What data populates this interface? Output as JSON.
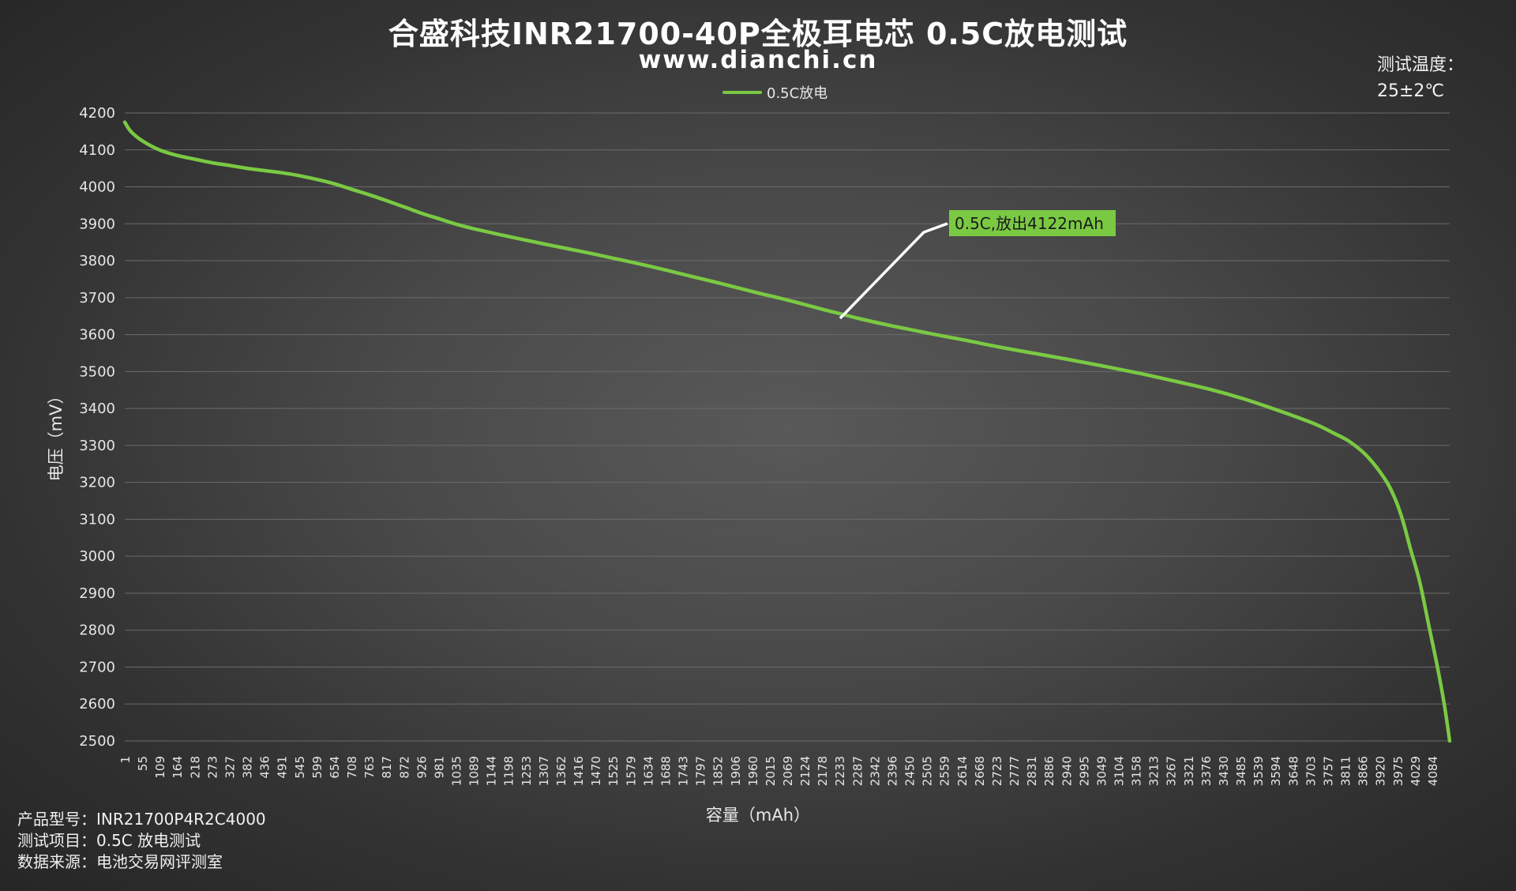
{
  "chart_title": "合盛科技INR21700-40P全极耳电芯 0.5C放电测试",
  "chart_subtitle": "www.dianchi.cn",
  "test_temperature": {
    "label": "测试温度：",
    "value": "25±2℃"
  },
  "footer": [
    {
      "label": "产品型号：",
      "value": "INR21700P4R2C4000"
    },
    {
      "label": "测试项目：",
      "value": "0.5C 放电测试"
    },
    {
      "label": "数据来源：",
      "value": "电池交易网评测室"
    }
  ],
  "callout": "0.5C,放出4122mAh",
  "colors": {
    "series": "#7ac943",
    "callout_bg": "#7ac943",
    "gridline": "#6b6b6b",
    "leader_line": "#ffffff"
  },
  "chart_data": {
    "type": "line",
    "title": "合盛科技INR21700-40P全极耳电芯 0.5C放电测试",
    "xlabel": "容量（mAh）",
    "ylabel": "电压（mV）",
    "ylim": [
      2500,
      4200
    ],
    "yticks": [
      4200,
      4100,
      4000,
      3900,
      3800,
      3700,
      3600,
      3500,
      3400,
      3300,
      3200,
      3100,
      3000,
      2900,
      2800,
      2700,
      2600,
      2500
    ],
    "xlim": [
      1,
      4122
    ],
    "xticks": [
      "1",
      "55",
      "109",
      "164",
      "218",
      "273",
      "327",
      "382",
      "436",
      "491",
      "545",
      "599",
      "654",
      "708",
      "763",
      "817",
      "872",
      "926",
      "981",
      "1035",
      "1089",
      "1144",
      "1198",
      "1253",
      "1307",
      "1362",
      "1416",
      "1470",
      "1525",
      "1579",
      "1634",
      "1688",
      "1743",
      "1797",
      "1852",
      "1906",
      "1960",
      "2015",
      "2069",
      "2124",
      "2178",
      "2233",
      "2287",
      "2342",
      "2396",
      "2450",
      "2505",
      "2559",
      "2614",
      "2668",
      "2723",
      "2777",
      "2831",
      "2886",
      "2940",
      "2995",
      "3049",
      "3104",
      "3158",
      "3213",
      "3267",
      "3321",
      "3376",
      "3430",
      "3485",
      "3539",
      "3594",
      "3648",
      "3703",
      "3757",
      "3811",
      "3866",
      "3920",
      "3975",
      "4029",
      "4084"
    ],
    "grid": true,
    "legend_position": "top-center",
    "series": [
      {
        "name": "0.5C放电",
        "x": [
          1,
          20,
          55,
          109,
          164,
          218,
          273,
          327,
          382,
          436,
          491,
          545,
          599,
          654,
          708,
          763,
          817,
          872,
          926,
          981,
          1035,
          1089,
          1198,
          1307,
          1416,
          1525,
          1634,
          1743,
          1852,
          1960,
          2069,
          2178,
          2233,
          2287,
          2396,
          2505,
          2614,
          2723,
          2831,
          2940,
          3049,
          3158,
          3267,
          3376,
          3485,
          3594,
          3703,
          3757,
          3811,
          3866,
          3920,
          3950,
          3975,
          4000,
          4029,
          4060,
          4084,
          4105,
          4122
        ],
        "y": [
          4175,
          4150,
          4125,
          4100,
          4085,
          4075,
          4065,
          4058,
          4050,
          4044,
          4038,
          4030,
          4020,
          4008,
          3993,
          3978,
          3962,
          3945,
          3928,
          3913,
          3898,
          3886,
          3865,
          3845,
          3826,
          3806,
          3785,
          3762,
          3739,
          3715,
          3692,
          3667,
          3655,
          3643,
          3622,
          3603,
          3585,
          3566,
          3549,
          3532,
          3514,
          3495,
          3474,
          3452,
          3425,
          3393,
          3358,
          3335,
          3310,
          3270,
          3210,
          3160,
          3100,
          3020,
          2930,
          2800,
          2700,
          2600,
          2500
        ]
      }
    ]
  }
}
